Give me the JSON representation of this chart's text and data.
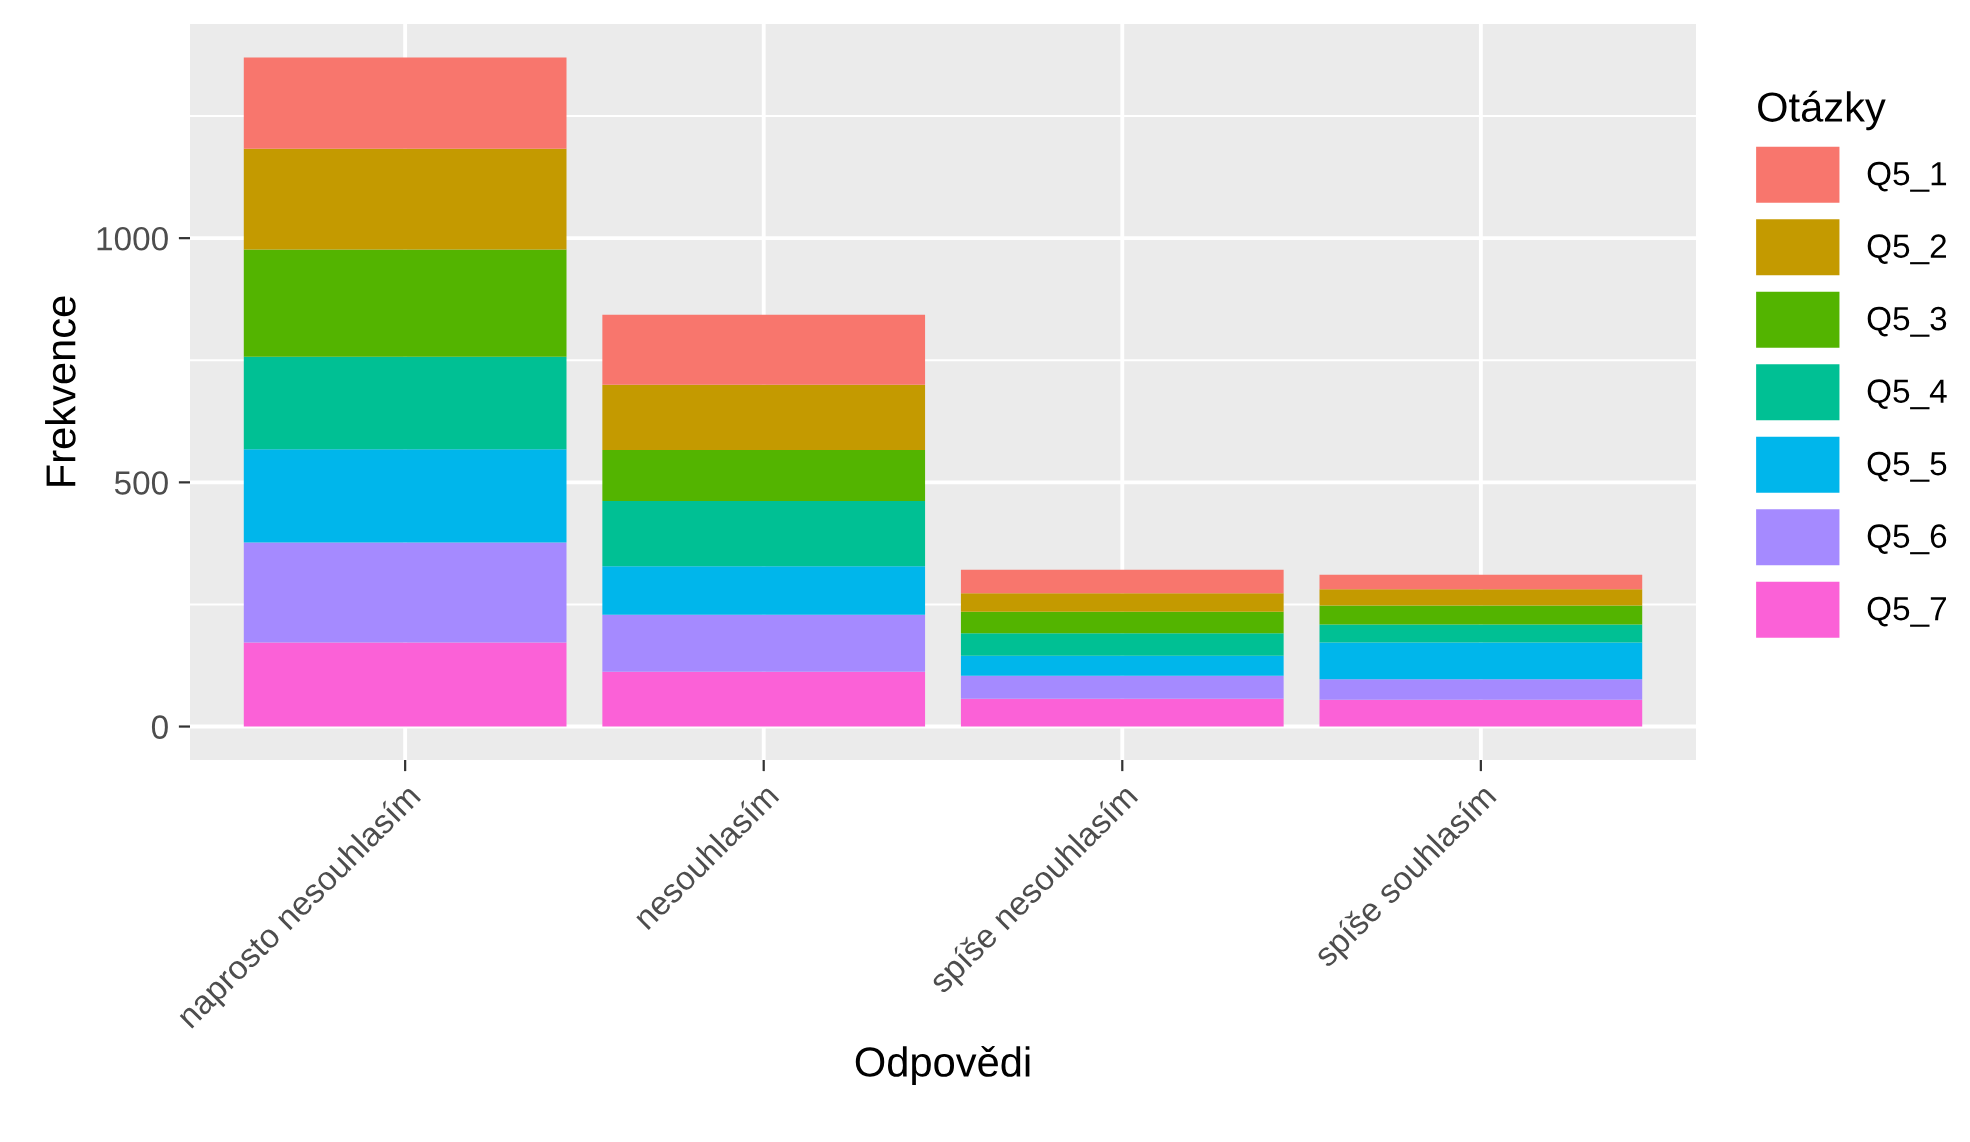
{
  "chart_data": {
    "type": "bar",
    "stacked": true,
    "xlabel": "Odpovědi",
    "ylabel": "Frekvence",
    "legend_title": "Otázky",
    "categories": [
      "naprosto nesouhlasím",
      "nesouhlasím",
      "spíše nesouhlasím",
      "spíše souhlasím"
    ],
    "series": [
      {
        "name": "Q5_7",
        "color": "#fb61d7",
        "values": [
          172,
          112,
          57,
          55
        ]
      },
      {
        "name": "Q5_6",
        "color": "#a58aff",
        "values": [
          205,
          117,
          47,
          42
        ]
      },
      {
        "name": "Q5_5",
        "color": "#00b6eb",
        "values": [
          191,
          99,
          41,
          75
        ]
      },
      {
        "name": "Q5_4",
        "color": "#00c094",
        "values": [
          189,
          134,
          46,
          37
        ]
      },
      {
        "name": "Q5_3",
        "color": "#53b400",
        "values": [
          220,
          104,
          44,
          39
        ]
      },
      {
        "name": "Q5_2",
        "color": "#c49a00",
        "values": [
          206,
          134,
          38,
          33
        ]
      },
      {
        "name": "Q5_1",
        "color": "#f8766d",
        "values": [
          187,
          143,
          48,
          30
        ]
      }
    ],
    "ylim": [
      -68.5,
      1438.5
    ],
    "yticks": [
      0,
      500,
      1000
    ],
    "grid": true,
    "legend": "right"
  }
}
